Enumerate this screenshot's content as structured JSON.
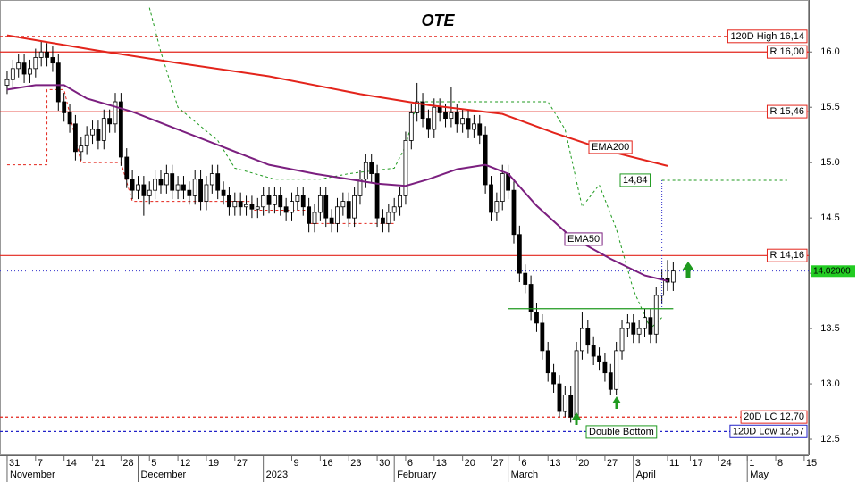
{
  "chart_data": {
    "type": "candlestick",
    "title": "OTE",
    "title_color": "#1a9a1a",
    "x": [
      0,
      1,
      2,
      3,
      4,
      5,
      6,
      7,
      8,
      9,
      10,
      11,
      12,
      13,
      14,
      15,
      16,
      17,
      18,
      19,
      20,
      21,
      22,
      23,
      24,
      25,
      26,
      27,
      28,
      29,
      30,
      31,
      32,
      33,
      34,
      35,
      36,
      37,
      38,
      39,
      40,
      41,
      42,
      43,
      44,
      45,
      46,
      47,
      48,
      49,
      50,
      51,
      52,
      53,
      54,
      55,
      56,
      57,
      58,
      59,
      60,
      61,
      62,
      63,
      64,
      65,
      66,
      67,
      68,
      69,
      70,
      71,
      72,
      73,
      74,
      75,
      76,
      77,
      78,
      79,
      80,
      81,
      82,
      83,
      84,
      85,
      86,
      87,
      88,
      89,
      90,
      91,
      92,
      93,
      94,
      95,
      96,
      97,
      98,
      99,
      100,
      101,
      102,
      103,
      104,
      105,
      106,
      107,
      108,
      109,
      110,
      111,
      112,
      113,
      114,
      115,
      116,
      117
    ],
    "open": [
      15.7,
      15.75,
      15.85,
      15.9,
      15.8,
      15.85,
      15.95,
      16.0,
      15.95,
      15.9,
      15.55,
      15.45,
      15.35,
      15.1,
      15.15,
      15.25,
      15.3,
      15.2,
      15.4,
      15.35,
      15.55,
      15.05,
      14.85,
      14.75,
      14.8,
      14.7,
      14.75,
      14.85,
      14.8,
      14.9,
      14.75,
      14.8,
      14.75,
      14.7,
      14.85,
      14.65,
      14.8,
      14.9,
      14.75,
      14.7,
      14.6,
      14.65,
      14.6,
      14.62,
      14.58,
      14.6,
      14.7,
      14.62,
      14.7,
      14.6,
      14.55,
      14.65,
      14.7,
      14.6,
      14.45,
      14.55,
      14.7,
      14.5,
      14.45,
      14.6,
      14.65,
      14.5,
      14.7,
      14.85,
      15.0,
      14.9,
      14.5,
      14.45,
      14.55,
      14.6,
      14.7,
      15.2,
      15.45,
      15.55,
      15.4,
      15.3,
      15.5,
      15.45,
      15.4,
      15.45,
      15.35,
      15.4,
      15.3,
      15.35,
      15.25,
      14.8,
      14.55,
      14.65,
      14.9,
      14.75,
      14.35,
      14.0,
      13.9,
      13.65,
      13.55,
      13.3,
      13.1,
      13.0,
      12.75,
      12.9,
      12.7,
      13.3,
      13.5,
      13.35,
      13.25,
      13.2,
      13.1,
      12.95,
      13.3,
      13.5,
      13.55,
      13.45,
      13.5,
      13.6,
      13.45,
      13.8,
      13.95,
      13.92
    ],
    "high": [
      15.83,
      15.93,
      15.98,
      15.98,
      15.93,
      16.03,
      16.1,
      16.08,
      16.05,
      15.98,
      15.63,
      15.53,
      15.43,
      15.23,
      15.33,
      15.38,
      15.38,
      15.48,
      15.48,
      15.63,
      15.63,
      15.13,
      14.93,
      14.88,
      14.88,
      14.83,
      14.93,
      14.93,
      14.98,
      14.98,
      14.88,
      14.88,
      14.83,
      14.93,
      14.93,
      14.88,
      14.98,
      14.98,
      14.83,
      14.78,
      14.73,
      14.73,
      14.7,
      14.7,
      14.68,
      14.78,
      14.78,
      14.78,
      14.78,
      14.68,
      14.73,
      14.78,
      14.78,
      14.68,
      14.63,
      14.78,
      14.78,
      14.58,
      14.68,
      14.73,
      14.73,
      14.78,
      14.93,
      15.08,
      15.08,
      14.98,
      14.58,
      14.63,
      14.68,
      14.78,
      15.28,
      15.53,
      15.72,
      15.63,
      15.48,
      15.58,
      15.58,
      15.53,
      15.68,
      15.53,
      15.48,
      15.48,
      15.43,
      15.43,
      15.33,
      14.88,
      14.73,
      14.98,
      14.98,
      14.83,
      14.43,
      14.08,
      13.98,
      13.73,
      13.63,
      13.38,
      13.18,
      13.08,
      12.98,
      12.98,
      13.38,
      13.65,
      13.58,
      13.43,
      13.33,
      13.28,
      13.18,
      13.38,
      13.58,
      13.63,
      13.63,
      13.58,
      13.68,
      13.68,
      13.88,
      14.03,
      14.12,
      14.1
    ],
    "low": [
      15.62,
      15.67,
      15.77,
      15.72,
      15.72,
      15.77,
      15.87,
      15.87,
      15.82,
      15.47,
      15.37,
      15.27,
      15.02,
      15.02,
      15.07,
      15.17,
      15.12,
      15.12,
      15.27,
      15.27,
      14.97,
      14.77,
      14.67,
      14.67,
      14.52,
      14.62,
      14.67,
      14.72,
      14.72,
      14.67,
      14.67,
      14.67,
      14.62,
      14.62,
      14.57,
      14.57,
      14.72,
      14.67,
      14.62,
      14.52,
      14.52,
      14.52,
      14.52,
      14.5,
      14.5,
      14.52,
      14.54,
      14.54,
      14.52,
      14.47,
      14.47,
      14.57,
      14.52,
      14.37,
      14.37,
      14.47,
      14.42,
      14.37,
      14.37,
      14.52,
      14.42,
      14.42,
      14.62,
      14.77,
      14.82,
      14.42,
      14.37,
      14.37,
      14.47,
      14.52,
      14.62,
      15.12,
      15.37,
      15.32,
      15.22,
      15.22,
      15.37,
      15.32,
      15.32,
      15.27,
      15.27,
      15.22,
      15.22,
      15.17,
      14.72,
      14.47,
      14.47,
      14.57,
      14.67,
      14.27,
      13.92,
      13.82,
      13.57,
      13.47,
      13.22,
      13.02,
      12.92,
      12.7,
      12.7,
      12.65,
      12.68,
      13.22,
      13.27,
      13.17,
      13.12,
      13.02,
      12.9,
      12.9,
      13.22,
      13.42,
      13.37,
      13.37,
      13.42,
      13.37,
      13.37,
      13.72,
      13.84,
      13.84
    ],
    "close": [
      15.75,
      15.85,
      15.9,
      15.8,
      15.85,
      15.95,
      16.0,
      15.95,
      15.9,
      15.55,
      15.45,
      15.35,
      15.1,
      15.15,
      15.25,
      15.3,
      15.2,
      15.4,
      15.35,
      15.55,
      15.05,
      14.85,
      14.75,
      14.8,
      14.7,
      14.75,
      14.85,
      14.8,
      14.9,
      14.75,
      14.8,
      14.75,
      14.7,
      14.85,
      14.65,
      14.8,
      14.9,
      14.75,
      14.7,
      14.6,
      14.65,
      14.6,
      14.62,
      14.58,
      14.6,
      14.7,
      14.62,
      14.7,
      14.6,
      14.55,
      14.65,
      14.7,
      14.6,
      14.45,
      14.55,
      14.7,
      14.5,
      14.45,
      14.6,
      14.65,
      14.5,
      14.7,
      14.85,
      15.0,
      14.9,
      14.5,
      14.45,
      14.55,
      14.6,
      14.7,
      15.2,
      15.45,
      15.55,
      15.4,
      15.3,
      15.5,
      15.45,
      15.4,
      15.45,
      15.35,
      15.4,
      15.3,
      15.35,
      15.25,
      14.8,
      14.55,
      14.65,
      14.9,
      14.75,
      14.35,
      14.0,
      13.9,
      13.65,
      13.55,
      13.3,
      13.1,
      13.0,
      12.75,
      12.9,
      12.7,
      13.3,
      13.5,
      13.35,
      13.25,
      13.2,
      13.1,
      12.95,
      13.3,
      13.5,
      13.55,
      13.45,
      13.5,
      13.6,
      13.45,
      13.8,
      13.95,
      13.92,
      14.02
    ],
    "xlim": [
      -1.25,
      140.8
    ],
    "ylim": [
      12.355,
      16.47
    ],
    "xticks": [
      {
        "value": 0,
        "label": "31"
      },
      {
        "value": 5,
        "label": "7"
      },
      {
        "value": 10,
        "label": "14"
      },
      {
        "value": 15,
        "label": "21"
      },
      {
        "value": 20,
        "label": "28"
      },
      {
        "value": 25,
        "label": "5"
      },
      {
        "value": 30,
        "label": "12"
      },
      {
        "value": 35,
        "label": "19"
      },
      {
        "value": 40,
        "label": "27"
      },
      {
        "value": 50,
        "label": "9"
      },
      {
        "value": 55,
        "label": "16"
      },
      {
        "value": 60,
        "label": "23"
      },
      {
        "value": 65,
        "label": "30"
      },
      {
        "value": 70,
        "label": "6"
      },
      {
        "value": 75,
        "label": "13"
      },
      {
        "value": 80,
        "label": "20"
      },
      {
        "value": 85,
        "label": "27"
      },
      {
        "value": 90,
        "label": "6"
      },
      {
        "value": 95,
        "label": "13"
      },
      {
        "value": 100,
        "label": "20"
      },
      {
        "value": 105,
        "label": "27"
      },
      {
        "value": 110,
        "label": "3"
      },
      {
        "value": 116,
        "label": "11"
      },
      {
        "value": 120,
        "label": "17"
      },
      {
        "value": 125,
        "label": "24"
      },
      {
        "value": 130,
        "label": "1"
      },
      {
        "value": 135,
        "label": "8"
      },
      {
        "value": 140,
        "label": "15"
      }
    ],
    "month_ticks": [
      {
        "value": 0,
        "label": "November"
      },
      {
        "value": 23,
        "label": "December"
      },
      {
        "value": 45,
        "label": "2023"
      },
      {
        "value": 68,
        "label": "February"
      },
      {
        "value": 88,
        "label": "March"
      },
      {
        "value": 110,
        "label": "April"
      },
      {
        "value": 130,
        "label": "May"
      }
    ],
    "yticks": [
      12.5,
      {
        "value": 13,
        "label": "13.0"
      },
      13.5,
      {
        "value": 14,
        "label": "14.0"
      },
      14.5,
      {
        "value": 15,
        "label": "15.0"
      },
      15.5,
      {
        "value": 16,
        "label": "16.0"
      }
    ],
    "lines": [
      {
        "name": "EMA200",
        "color": "#e3241b",
        "x": [
          0,
          15,
          30,
          46,
          62,
          74,
          87,
          96,
          106,
          116
        ],
        "values": [
          16.15,
          16.02,
          15.9,
          15.78,
          15.62,
          15.52,
          15.44,
          15.27,
          15.1,
          14.97
        ]
      },
      {
        "name": "EMA50",
        "color": "#7b1f7f",
        "x": [
          0,
          5,
          10,
          14,
          22,
          30,
          38,
          46,
          54,
          65,
          70,
          74,
          79,
          84,
          88,
          93,
          99,
          106,
          112,
          116
        ],
        "values": [
          15.66,
          15.7,
          15.7,
          15.58,
          15.46,
          15.3,
          15.14,
          14.98,
          14.9,
          14.81,
          14.79,
          14.85,
          14.94,
          14.98,
          14.9,
          14.61,
          14.33,
          14.13,
          13.98,
          13.93
        ]
      }
    ],
    "stops": [
      {
        "color": "#e3241b",
        "x": [
          0,
          7,
          7,
          10,
          13,
          20,
          22,
          43,
          43,
          53,
          53,
          68
        ],
        "values": [
          14.98,
          14.98,
          15.66,
          15.66,
          15.0,
          15.0,
          14.65,
          14.65,
          14.57,
          14.57,
          14.45,
          14.45
        ]
      },
      {
        "color": "#1f9a1f",
        "x": [
          25,
          27,
          30,
          37,
          40,
          47,
          55,
          60,
          68,
          70,
          72,
          95,
          98,
          101,
          104,
          107,
          110,
          113,
          115
        ],
        "values": [
          16.4,
          16.0,
          15.5,
          15.2,
          14.95,
          14.85,
          14.85,
          14.9,
          14.95,
          15.15,
          15.55,
          15.55,
          15.3,
          14.6,
          14.8,
          14.4,
          13.85,
          13.5,
          13.6
        ]
      }
    ],
    "levels": [
      {
        "label": "120D High 16,14",
        "value": 16.14,
        "color": "#e3241b",
        "dashed": true
      },
      {
        "label": "R 16,00",
        "value": 16.0,
        "color": "#e3241b",
        "dashed": false
      },
      {
        "label": "R 15,46",
        "value": 15.46,
        "color": "#e3241b",
        "dashed": false
      },
      {
        "label": "R 14,16",
        "value": 14.16,
        "color": "#e3241b",
        "dashed": false
      },
      {
        "label": "20D LC 12,70",
        "value": 12.7,
        "color": "#e3241b",
        "dashed": true
      },
      {
        "label": "120D Low 12,57",
        "value": 12.57,
        "color": "#2222c8",
        "dashed": true
      }
    ],
    "neckline": {
      "color": "#1f9a1f",
      "x": [
        88,
        117
      ],
      "values": [
        13.68,
        13.68
      ]
    },
    "target": {
      "label": "14,84",
      "value": 14.84,
      "color": "#1f9a1f",
      "x": [
        115,
        137
      ]
    },
    "pattern": "Double Bottom",
    "last_price": {
      "value": 14.02,
      "label": "14.02000",
      "color": "#22cc22"
    }
  }
}
